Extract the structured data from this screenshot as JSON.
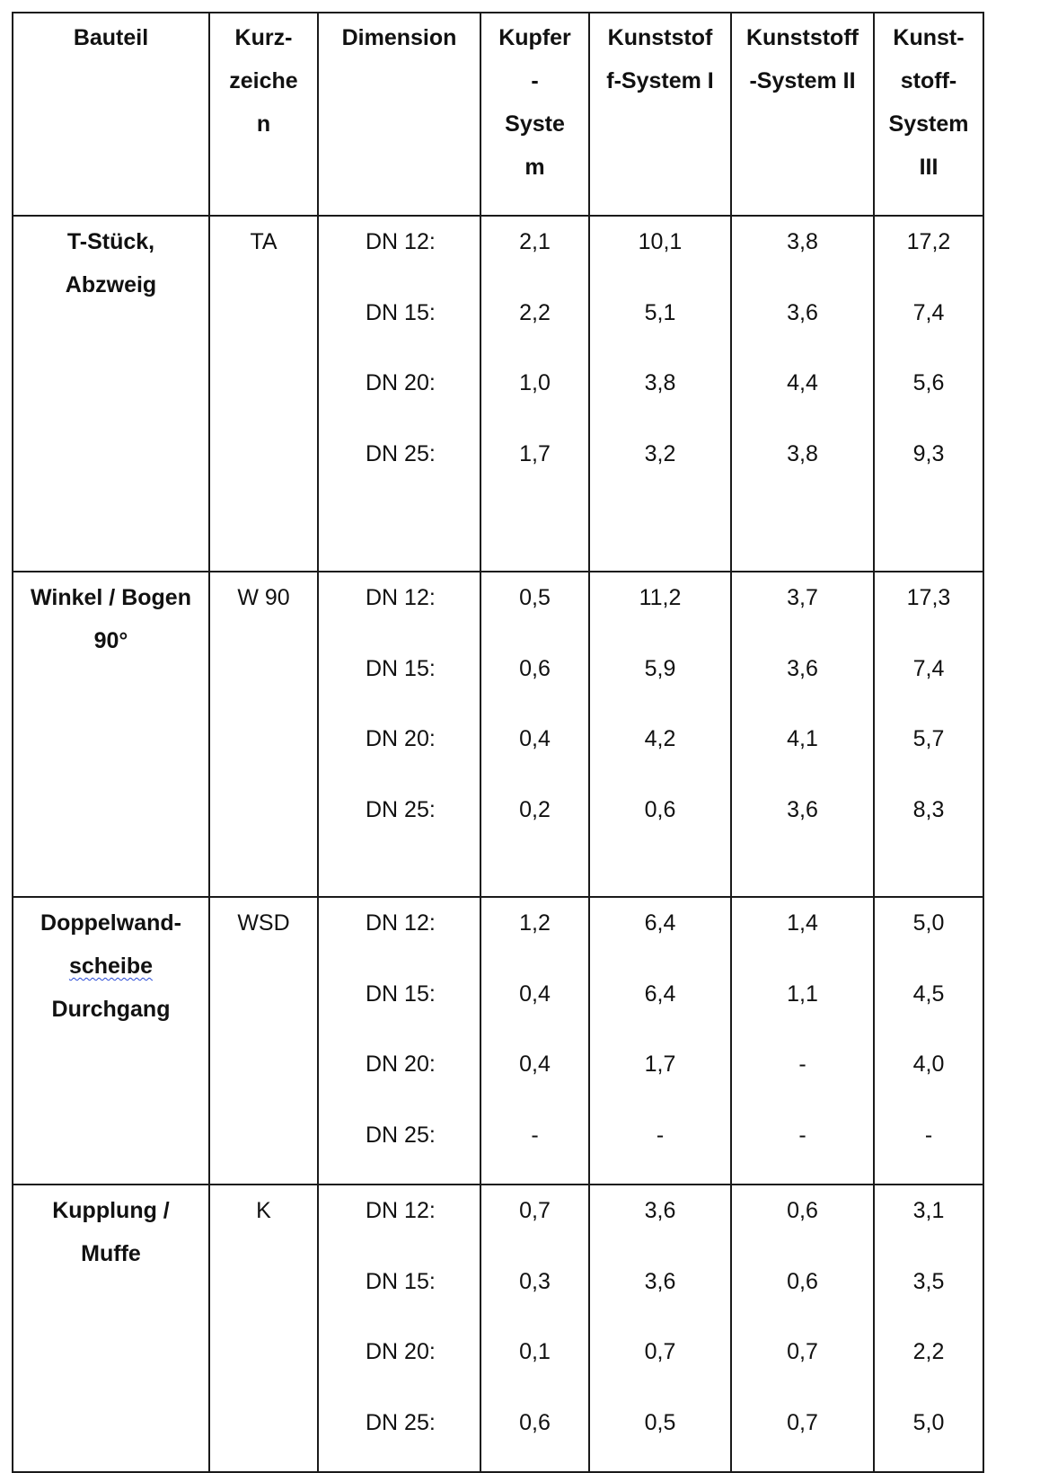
{
  "headers": [
    "Bauteil",
    "Kurz-\nzeiche\nn",
    "Dimension",
    "Kupfer\n-\nSyste\nm",
    "Kunststof\nf-System I",
    "Kunststoff\n-System II",
    "Kunst-\nstoff-\nSystem\nIII"
  ],
  "groups": [
    {
      "name_lines": [
        "T-Stück,",
        "Abzweig"
      ],
      "code": "TA",
      "dims": [
        "DN 12:",
        "DN 15:",
        "DN 20:",
        "DN 25:"
      ],
      "kupfer": [
        "2,1",
        "2,2",
        "1,0",
        "1,7"
      ],
      "k1": [
        "10,1",
        "5,1",
        "3,8",
        "3,2"
      ],
      "k2": [
        "3,8",
        "3,6",
        "4,4",
        "3,8"
      ],
      "k3": [
        "17,2",
        "7,4",
        "5,6",
        "9,3"
      ]
    },
    {
      "name_lines": [
        "Winkel / Bogen",
        "90°"
      ],
      "code": "W 90",
      "dims": [
        "DN 12:",
        "DN 15:",
        "DN 20:",
        "DN 25:"
      ],
      "kupfer": [
        "0,5",
        "0,6",
        "0,4",
        "0,2"
      ],
      "k1": [
        "11,2",
        "5,9",
        "4,2",
        "0,6"
      ],
      "k2": [
        "3,7",
        "3,6",
        "4,1",
        "3,6"
      ],
      "k3": [
        "17,3",
        "7,4",
        "5,7",
        "8,3"
      ]
    },
    {
      "name_lines": [
        "Doppelwand-",
        "scheibe",
        "Durchgang"
      ],
      "code": "WSD",
      "dims": [
        "DN 12:",
        "DN 15:",
        "DN 20:",
        "DN 25:"
      ],
      "kupfer": [
        "1,2",
        "0,4",
        "0,4",
        "-"
      ],
      "k1": [
        "6,4",
        "6,4",
        "1,7",
        "-"
      ],
      "k2": [
        "1,4",
        "1,1",
        "-",
        "-"
      ],
      "k3": [
        "5,0",
        "4,5",
        "4,0",
        "-"
      ]
    },
    {
      "name_lines": [
        "Kupplung /",
        "Muffe"
      ],
      "code": "K",
      "dims": [
        "DN 12:",
        "DN 15:",
        "DN 20:",
        "DN 25:"
      ],
      "kupfer": [
        "0,7",
        "0,3",
        "0,1",
        "0,6"
      ],
      "k1": [
        "3,6",
        "3,6",
        "0,7",
        "0,5"
      ],
      "k2": [
        "0,6",
        "0,6",
        "0,7",
        "0,7"
      ],
      "k3": [
        "3,1",
        "3,5",
        "2,2",
        "5,0"
      ]
    }
  ]
}
